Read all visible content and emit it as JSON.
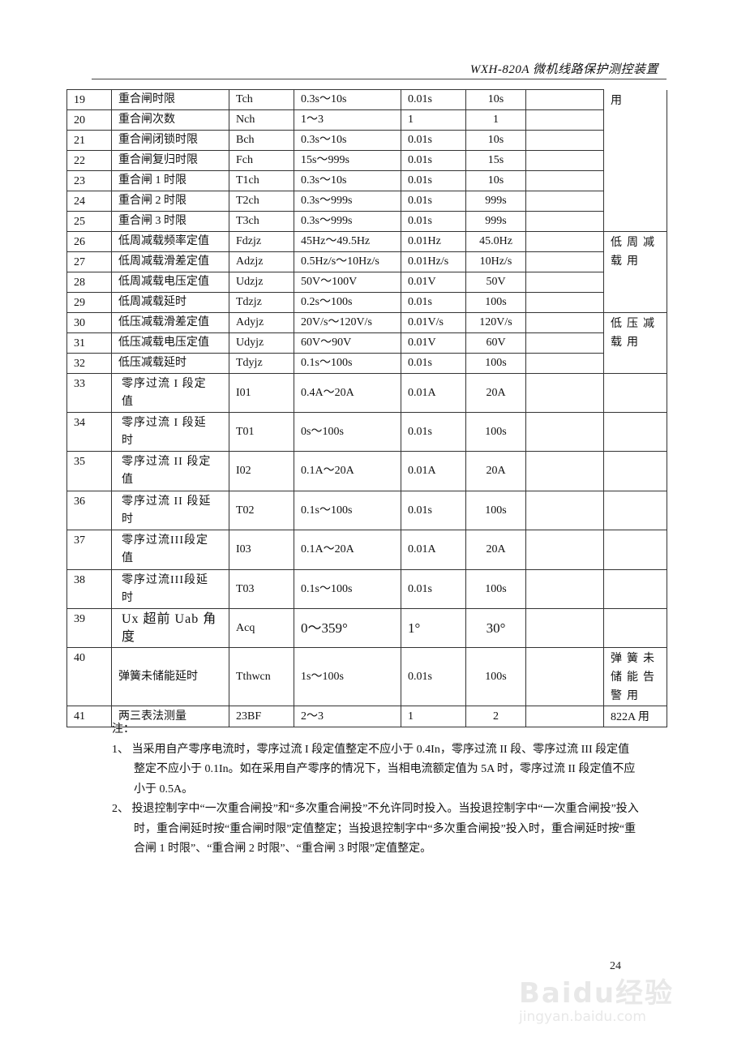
{
  "header": {
    "title": "WXH-820A 微机线路保护测控装置"
  },
  "table": {
    "rows": [
      {
        "no": "19",
        "name": "重合闸时限",
        "code": "Tch",
        "range": "0.3s～10s",
        "step": "0.01s",
        "default": "10s",
        "remark": ""
      },
      {
        "no": "20",
        "name": "重合闸次数",
        "code": "Nch",
        "range": "1～3",
        "step": "1",
        "default": "1",
        "remark": ""
      },
      {
        "no": "21",
        "name": "重合闸闭锁时限",
        "code": "Bch",
        "range": "0.3s～10s",
        "step": "0.01s",
        "default": "10s",
        "remark": ""
      },
      {
        "no": "22",
        "name": "重合闸复归时限",
        "code": "Fch",
        "range": "15s～999s",
        "step": "0.01s",
        "default": "15s",
        "remark": ""
      },
      {
        "no": "23",
        "name": "重合闸 1 时限",
        "code": "T1ch",
        "range": "0.3s～10s",
        "step": "0.01s",
        "default": "10s",
        "remark": ""
      },
      {
        "no": "24",
        "name": "重合闸 2 时限",
        "code": "T2ch",
        "range": "0.3s～999s",
        "step": "0.01s",
        "default": "999s",
        "remark": ""
      },
      {
        "no": "25",
        "name": "重合闸 3 时限",
        "code": "T3ch",
        "range": "0.3s～999s",
        "step": "0.01s",
        "default": "999s",
        "remark": ""
      },
      {
        "no": "26",
        "name": "低周减载频率定值",
        "code": "Fdzjz",
        "range": "45Hz～49.5Hz",
        "step": "0.01Hz",
        "default": "45.0Hz",
        "remark": ""
      },
      {
        "no": "27",
        "name": "低周减载滑差定值",
        "code": "Adzjz",
        "range": "0.5Hz/s～10Hz/s",
        "step": "0.01Hz/s",
        "default": "10Hz/s",
        "remark": ""
      },
      {
        "no": "28",
        "name": "低周减载电压定值",
        "code": "Udzjz",
        "range": "50V～100V",
        "step": "0.01V",
        "default": "50V",
        "remark": ""
      },
      {
        "no": "29",
        "name": "低周减载延时",
        "code": "Tdzjz",
        "range": "0.2s～100s",
        "step": "0.01s",
        "default": "100s",
        "remark": ""
      },
      {
        "no": "30",
        "name": "低压减载滑差定值",
        "code": "Adyjz",
        "range": "20V/s～120V/s",
        "step": "0.01V/s",
        "default": "120V/s",
        "remark": ""
      },
      {
        "no": "31",
        "name": "低压减载电压定值",
        "code": "Udyjz",
        "range": "60V～90V",
        "step": "0.01V",
        "default": "60V",
        "remark": ""
      },
      {
        "no": "32",
        "name": "低压减载延时",
        "code": "Tdyjz",
        "range": "0.1s～100s",
        "step": "0.01s",
        "default": "100s",
        "remark": ""
      },
      {
        "no": "33",
        "name": "零序过流 I 段定\n值",
        "code": "I01",
        "range": "0.4A～20A",
        "step": "0.01A",
        "default": "20A",
        "remark": ""
      },
      {
        "no": "34",
        "name": "零序过流 I 段延\n时",
        "code": "T01",
        "range": "0s～100s",
        "step": "0.01s",
        "default": "100s",
        "remark": ""
      },
      {
        "no": "35",
        "name": "零序过流 II 段定\n值",
        "code": "I02",
        "range": "0.1A～20A",
        "step": "0.01A",
        "default": "20A",
        "remark": ""
      },
      {
        "no": "36",
        "name": "零序过流 II 段延\n时",
        "code": "T02",
        "range": "0.1s～100s",
        "step": "0.01s",
        "default": "100s",
        "remark": ""
      },
      {
        "no": "37",
        "name": "零序过流III段定\n值",
        "code": "I03",
        "range": "0.1A～20A",
        "step": "0.01A",
        "default": "20A",
        "remark": ""
      },
      {
        "no": "38",
        "name": "零序过流III段延\n时",
        "code": "T03",
        "range": "0.1s～100s",
        "step": "0.01s",
        "default": "100s",
        "remark": ""
      },
      {
        "no": "39",
        "name": "Ux 超前 Uab 角\n度",
        "code": "Acq",
        "range": "0～359°",
        "step": "1°",
        "default": "30°",
        "remark": ""
      },
      {
        "no": "40",
        "name": "弹簧未储能延时",
        "code": "Tthwcn",
        "range": "1s～100s",
        "step": "0.01s",
        "default": "100s",
        "remark": ""
      },
      {
        "no": "41",
        "name": "两三表法测量",
        "code": "23BF",
        "range": "2～3",
        "step": "1",
        "default": "2",
        "remark": ""
      }
    ],
    "notes": [
      {
        "start": "19",
        "end": "25",
        "text": "用"
      },
      {
        "start": "26",
        "end": "29",
        "text": "低周减载用"
      },
      {
        "start": "30",
        "end": "32",
        "text": "低压减载用"
      },
      {
        "start": "33",
        "end": "33",
        "text": ""
      },
      {
        "start": "34",
        "end": "34",
        "text": ""
      },
      {
        "start": "35",
        "end": "35",
        "text": ""
      },
      {
        "start": "36",
        "end": "36",
        "text": ""
      },
      {
        "start": "37",
        "end": "37",
        "text": ""
      },
      {
        "start": "38",
        "end": "38",
        "text": ""
      },
      {
        "start": "39",
        "end": "39",
        "text": ""
      },
      {
        "start": "40",
        "end": "40",
        "text": "弹簧未储能告警用"
      },
      {
        "start": "41",
        "end": "41",
        "text": "822A 用"
      }
    ]
  },
  "notes": {
    "label": "注：",
    "items": [
      "1、 当采用自产零序电流时，零序过流 I 段定值整定不应小于 0.4In，零序过流 II 段、零序过流 III 段定值整定不应小于 0.1In。如在采用自产零序的情况下，当相电流额定值为 5A 时，零序过流 II 段定值不应小于 0.5A。",
      "2、 投退控制字中“一次重合闸投”和“多次重合闸投”不允许同时投入。当投退控制字中“一次重合闸投”投入时，重合闸延时按“重合闸时限”定值整定；当投退控制字中“多次重合闸投”投入时，重合闸延时按“重合闸 1 时限”、“重合闸 2 时限”、“重合闸 3 时限”定值整定。"
    ]
  },
  "page_number": "24",
  "watermark": {
    "logo": "Baidu经验",
    "url": "jingyan.baidu.com"
  }
}
